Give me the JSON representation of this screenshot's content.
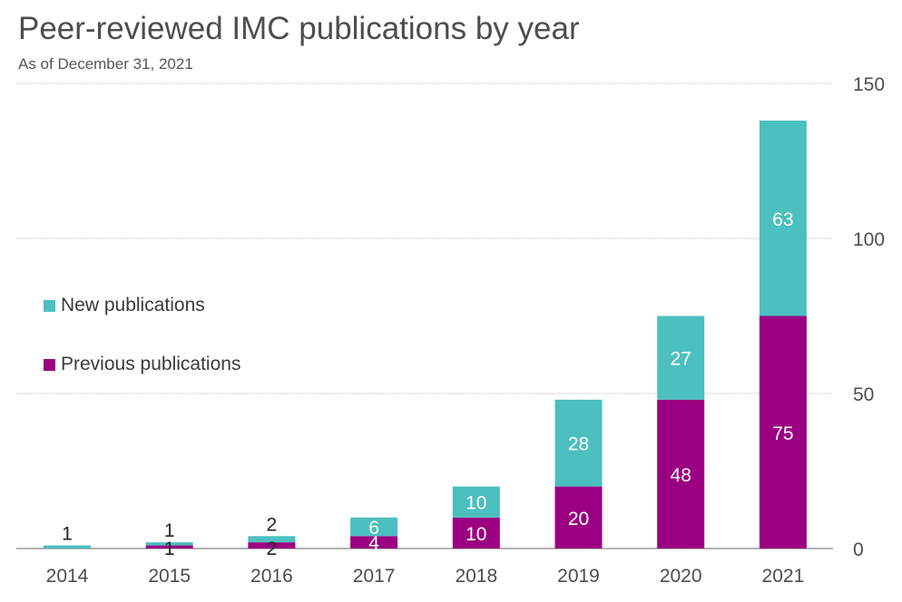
{
  "header": {
    "title": "Peer-reviewed IMC publications by year",
    "subtitle": "As of December 31, 2021"
  },
  "chart_data": {
    "type": "bar",
    "stacked": true,
    "categories": [
      "2014",
      "2015",
      "2016",
      "2017",
      "2018",
      "2019",
      "2020",
      "2021"
    ],
    "series": [
      {
        "name": "Previous publications",
        "color": "#9a0081",
        "values": [
          0,
          1,
          2,
          4,
          10,
          20,
          48,
          75
        ]
      },
      {
        "name": "New publications",
        "color": "#4cbfbf",
        "values": [
          1,
          1,
          2,
          6,
          10,
          28,
          27,
          63
        ]
      }
    ],
    "data_labels": {
      "previous": [
        "",
        "1",
        "2",
        "4",
        "10",
        "20",
        "48",
        "75"
      ],
      "new": [
        "1",
        "1",
        "2",
        "6",
        "10",
        "28",
        "27",
        "63"
      ]
    },
    "y_axis": {
      "min": 0,
      "max": 150,
      "ticks": [
        "0",
        "50",
        "100",
        "150"
      ],
      "position": "right"
    },
    "grid": true,
    "legend_position": "left"
  },
  "legend": {
    "new_label": "New publications",
    "previous_label": "Previous publications"
  }
}
